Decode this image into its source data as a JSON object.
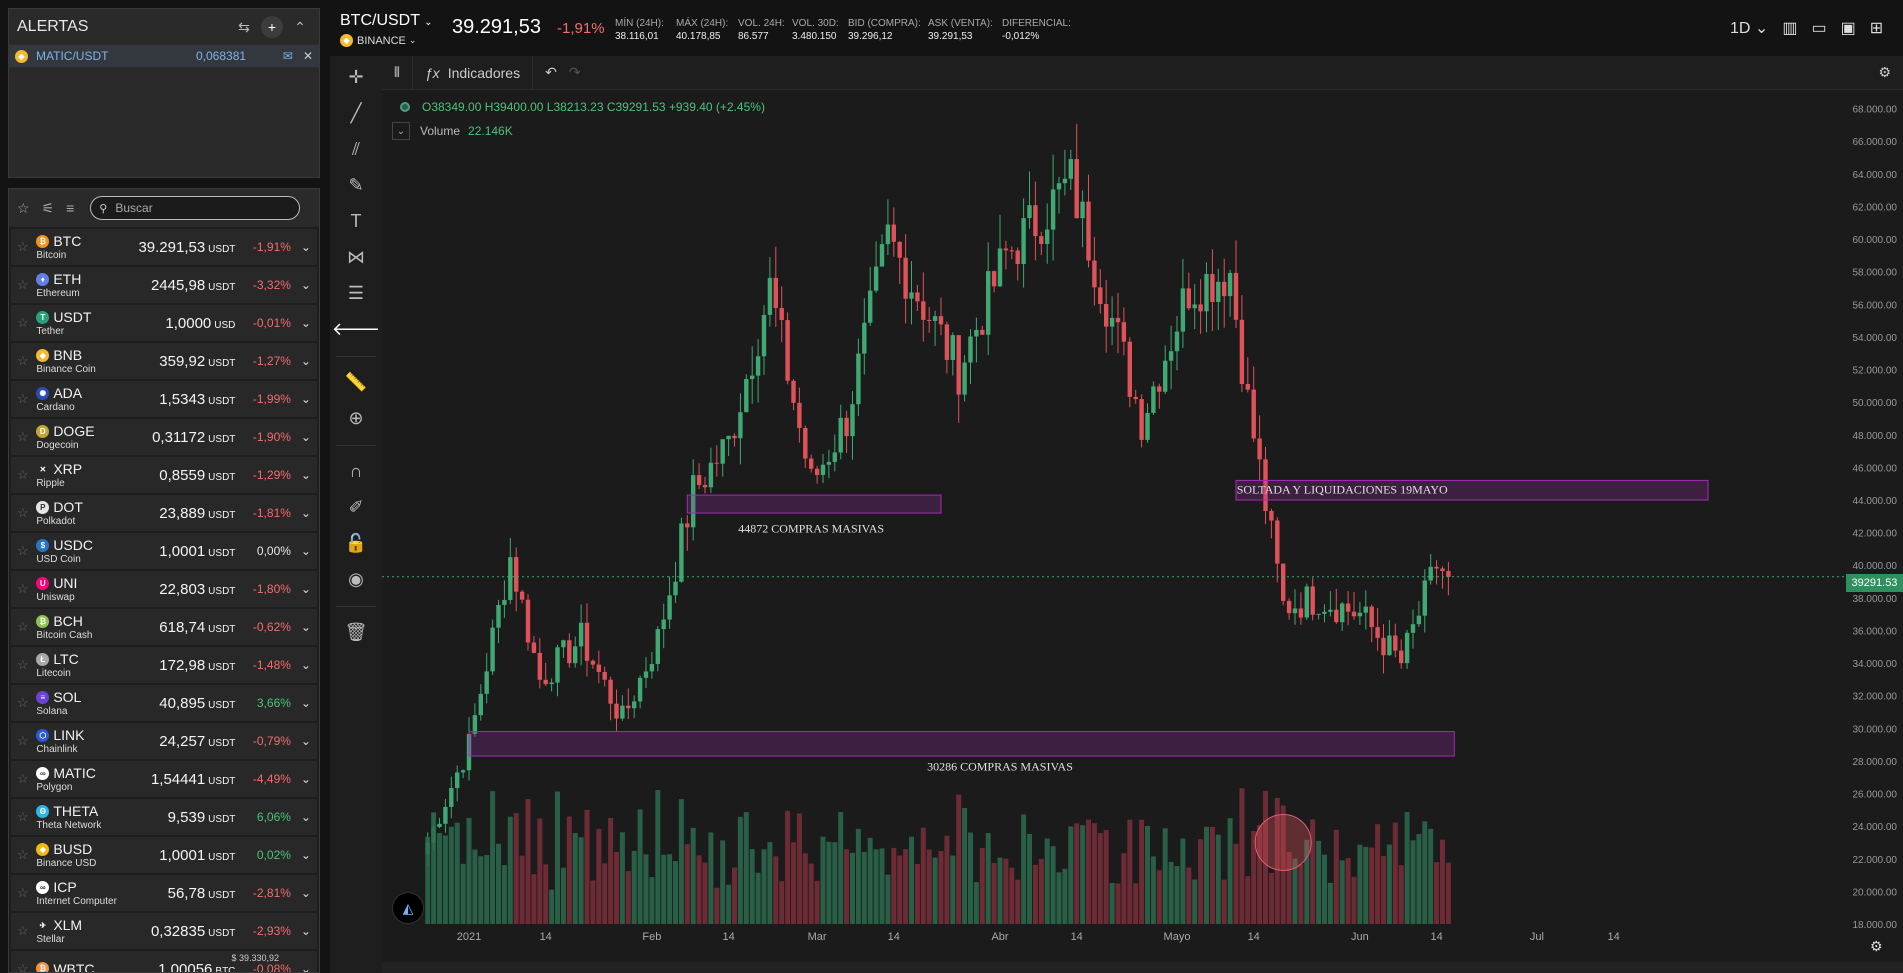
{
  "alerts": {
    "title": "ALERTAS",
    "items": [
      {
        "symbol": "MATIC/USDT",
        "value": "0,068381"
      }
    ]
  },
  "search": {
    "placeholder": "Buscar"
  },
  "markets": [
    {
      "sym": "BTC",
      "name": "Bitcoin",
      "price": "39.291,53",
      "unit": "USDT",
      "chg": "-1,91%",
      "color": "#f7931a",
      "icon": "bitcoin-icon",
      "glyph": "₿"
    },
    {
      "sym": "ETH",
      "name": "Ethereum",
      "price": "2445,98",
      "unit": "USDT",
      "chg": "-3,32%",
      "color": "#627eea",
      "icon": "ethereum-icon",
      "glyph": "♦"
    },
    {
      "sym": "USDT",
      "name": "Tether",
      "price": "1,0000",
      "unit": "USD",
      "chg": "-0,01%",
      "color": "#26a17b",
      "icon": "tether-icon",
      "glyph": "T"
    },
    {
      "sym": "BNB",
      "name": "Binance Coin",
      "price": "359,92",
      "unit": "USDT",
      "chg": "-1,27%",
      "color": "#f3ba2f",
      "icon": "binance-coin-icon",
      "glyph": "◆"
    },
    {
      "sym": "ADA",
      "name": "Cardano",
      "price": "1,5343",
      "unit": "USDT",
      "chg": "-1,99%",
      "color": "#2b4bb8",
      "icon": "cardano-icon",
      "glyph": "✺"
    },
    {
      "sym": "DOGE",
      "name": "Dogecoin",
      "price": "0,31172",
      "unit": "USDT",
      "chg": "-1,90%",
      "color": "#c2a633",
      "icon": "dogecoin-icon",
      "glyph": "D"
    },
    {
      "sym": "XRP",
      "name": "Ripple",
      "price": "0,8559",
      "unit": "USDT",
      "chg": "-1,29%",
      "color": "#282828",
      "icon": "ripple-icon",
      "glyph": "✕"
    },
    {
      "sym": "DOT",
      "name": "Polkadot",
      "price": "23,889",
      "unit": "USDT",
      "chg": "-1,81%",
      "color": "#e6e6e6",
      "icon": "polkadot-icon",
      "glyph": "P"
    },
    {
      "sym": "USDC",
      "name": "USD Coin",
      "price": "1,0001",
      "unit": "USDT",
      "chg": "0,00%",
      "color": "#2775ca",
      "icon": "usd-coin-icon",
      "glyph": "$"
    },
    {
      "sym": "UNI",
      "name": "Uniswap",
      "price": "22,803",
      "unit": "USDT",
      "chg": "-1,80%",
      "color": "#ff007a",
      "icon": "uniswap-icon",
      "glyph": "U"
    },
    {
      "sym": "BCH",
      "name": "Bitcoin Cash",
      "price": "618,74",
      "unit": "USDT",
      "chg": "-0,62%",
      "color": "#8dc351",
      "icon": "bitcoin-cash-icon",
      "glyph": "₿"
    },
    {
      "sym": "LTC",
      "name": "Litecoin",
      "price": "172,98",
      "unit": "USDT",
      "chg": "-1,48%",
      "color": "#a8a8a8",
      "icon": "litecoin-icon",
      "glyph": "Ł"
    },
    {
      "sym": "SOL",
      "name": "Solana",
      "price": "40,895",
      "unit": "USDT",
      "chg": "3,66%",
      "color": "#6b42d6",
      "icon": "solana-icon",
      "glyph": "≡"
    },
    {
      "sym": "LINK",
      "name": "Chainlink",
      "price": "24,257",
      "unit": "USDT",
      "chg": "-0,79%",
      "color": "#2a5ada",
      "icon": "chainlink-icon",
      "glyph": "⬡"
    },
    {
      "sym": "MATIC",
      "name": "Polygon",
      "price": "1,54441",
      "unit": "USDT",
      "chg": "-4,49%",
      "color": "#ffffff",
      "icon": "polygon-icon",
      "glyph": "∞"
    },
    {
      "sym": "THETA",
      "name": "Theta Network",
      "price": "9,539",
      "unit": "USDT",
      "chg": "6,06%",
      "color": "#2ab8e6",
      "icon": "theta-icon",
      "glyph": "Θ"
    },
    {
      "sym": "BUSD",
      "name": "Binance USD",
      "price": "1,0001",
      "unit": "USDT",
      "chg": "0,02%",
      "color": "#f0b90b",
      "icon": "binance-usd-icon",
      "glyph": "◆"
    },
    {
      "sym": "ICP",
      "name": "Internet Computer",
      "price": "56,78",
      "unit": "USDT",
      "chg": "-2,81%",
      "color": "#ffffff",
      "icon": "internet-computer-icon",
      "glyph": "∞"
    },
    {
      "sym": "XLM",
      "name": "Stellar",
      "price": "0,32835",
      "unit": "USDT",
      "chg": "-2,93%",
      "color": "#282828",
      "icon": "stellar-icon",
      "glyph": "✈"
    },
    {
      "sym": "WBTC",
      "name": "",
      "price": "1,00056",
      "unit": "BTC",
      "chg": "-0,08%",
      "extra": "$ 39.330,92",
      "color": "#f09242",
      "icon": "wrapped-bitcoin-icon",
      "glyph": "₿"
    }
  ],
  "header": {
    "pair": "BTC/USDT",
    "exchange": "BINANCE",
    "last": "39.291,53",
    "change": "-1,91%",
    "stats": [
      {
        "label": "MÍN (24H):",
        "value": "38.116,01"
      },
      {
        "label": "MÁX (24H):",
        "value": "40.178,85"
      },
      {
        "label": "VOL. 24H:",
        "value": "86.577"
      },
      {
        "label": "VOL. 30D:",
        "value": "3.480.150"
      },
      {
        "label": "BID (COMPRA):",
        "value": "39.296,12"
      },
      {
        "label": "ASK (VENTA):",
        "value": "39.291,53"
      },
      {
        "label": "DIFERENCIAL:",
        "value": "-0,012%"
      }
    ],
    "interval": "1D"
  },
  "toolbar": {
    "indicators": "Indicadores"
  },
  "legend": {
    "ohlc": "O38349.00  H39400.00  L38213.23  C39291.53  +939.40 (+2.45%)",
    "volume_label": "Volume",
    "volume_value": "22.146K"
  },
  "price_tag": "39291.53",
  "colors": {
    "up": "#3fa873",
    "down": "#e0525a",
    "zone": "#a52bb5"
  },
  "chart_data": {
    "type": "candlestick",
    "yaxis": {
      "min": 18000,
      "max": 70000,
      "step": 2000,
      "format": "000.00"
    },
    "xaxis": {
      "labels": [
        "2021",
        "14",
        "Feb",
        "14",
        "Mar",
        "14",
        "Abr",
        "14",
        "Mayo",
        "14",
        "Jun",
        "14",
        "Jul",
        "14"
      ]
    },
    "last_price": 39291.53,
    "zones": [
      {
        "from": 43200,
        "to": 44300,
        "label": "44872 COMPRAS MASIVAS",
        "start": "2021-02-07",
        "end": "2021-03-22"
      },
      {
        "from": 44000,
        "to": 45200,
        "label": "SOLTADA Y LIQUIDACIONES 19MAYO",
        "start": "2021-05-11",
        "end": "2021-07-30"
      },
      {
        "from": 28300,
        "to": 29800,
        "label": "30286 COMPRAS MASIVAS",
        "start": "2021-01-01",
        "end": "2021-06-17"
      }
    ],
    "path": [
      [
        "2020-12-25",
        23000
      ],
      [
        "2021-01-01",
        29000
      ],
      [
        "2021-01-08",
        40500
      ],
      [
        "2021-01-13",
        33000
      ],
      [
        "2021-01-20",
        35500
      ],
      [
        "2021-01-27",
        30500
      ],
      [
        "2021-02-02",
        35500
      ],
      [
        "2021-02-08",
        44500
      ],
      [
        "2021-02-14",
        47500
      ],
      [
        "2021-02-21",
        57000
      ],
      [
        "2021-02-28",
        45000
      ],
      [
        "2021-03-06",
        49000
      ],
      [
        "2021-03-13",
        60000
      ],
      [
        "2021-03-25",
        52000
      ],
      [
        "2021-04-02",
        59000
      ],
      [
        "2021-04-13",
        63500
      ],
      [
        "2021-04-25",
        49000
      ],
      [
        "2021-05-03",
        57000
      ],
      [
        "2021-05-10",
        58000
      ],
      [
        "2021-05-13",
        50000
      ],
      [
        "2021-05-19",
        37500
      ],
      [
        "2021-05-25",
        38000
      ],
      [
        "2021-06-01",
        37000
      ],
      [
        "2021-06-08",
        34000
      ],
      [
        "2021-06-14",
        40000
      ],
      [
        "2021-06-16",
        39300
      ]
    ]
  }
}
